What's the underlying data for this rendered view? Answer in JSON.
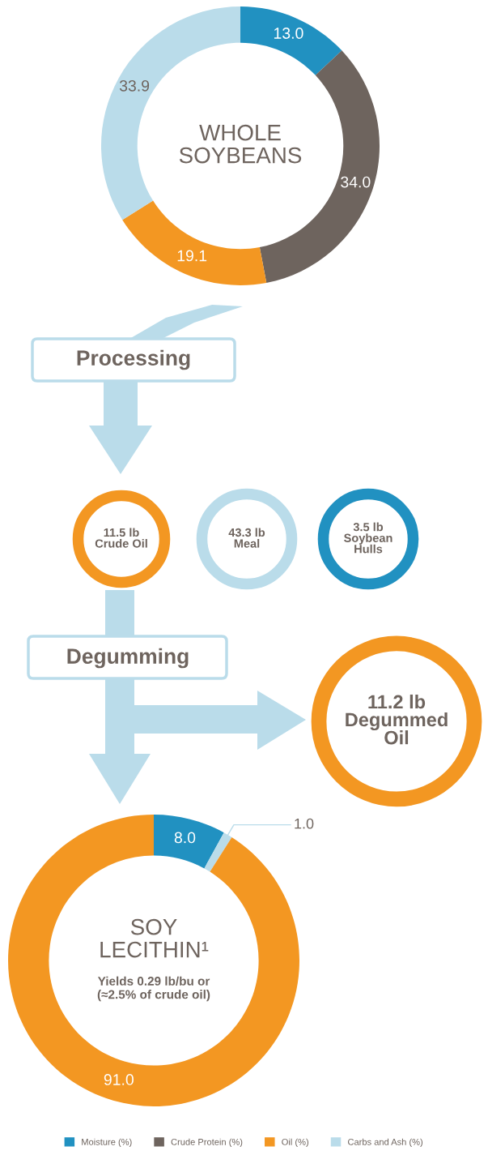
{
  "chart_data": [
    {
      "type": "donut",
      "title": "WHOLE SOYBEANS",
      "categories": [
        "Moisture (%)",
        "Crude Protein (%)",
        "Oil (%)",
        "Carbs and Ash (%)"
      ],
      "values": [
        13.0,
        34.0,
        19.1,
        33.9
      ],
      "colors": [
        "#2191c1",
        "#6e645e",
        "#f39722",
        "#badcea"
      ],
      "value_labels": [
        "13.0",
        "34.0",
        "19.1",
        "33.9"
      ],
      "legend": "bottom"
    },
    {
      "type": "other",
      "categories": [
        "Crude Oil",
        "Meal",
        "Soybean Hulls",
        "Degummed Oil"
      ],
      "value_labels": [
        "11.5 lb",
        "43.3 lb",
        "3.5 lb",
        "11.2 lb"
      ],
      "colors": [
        "#f39722",
        "#badcea",
        "#2191c1",
        "#f39722"
      ],
      "annotations": [
        "Processing",
        "Degumming"
      ]
    },
    {
      "type": "donut",
      "title": "SOY LECITHIN¹",
      "subtitle": "Yields 0.29 lb/bu or (≈2.5% of crude oil)",
      "categories": [
        null,
        null,
        null
      ],
      "values": [
        8.0,
        1.0,
        91.0
      ],
      "colors": [
        "#2191c1",
        "#badcea",
        "#f39722"
      ],
      "value_labels": [
        "8.0",
        "1.0",
        "91.0"
      ]
    }
  ]
}
